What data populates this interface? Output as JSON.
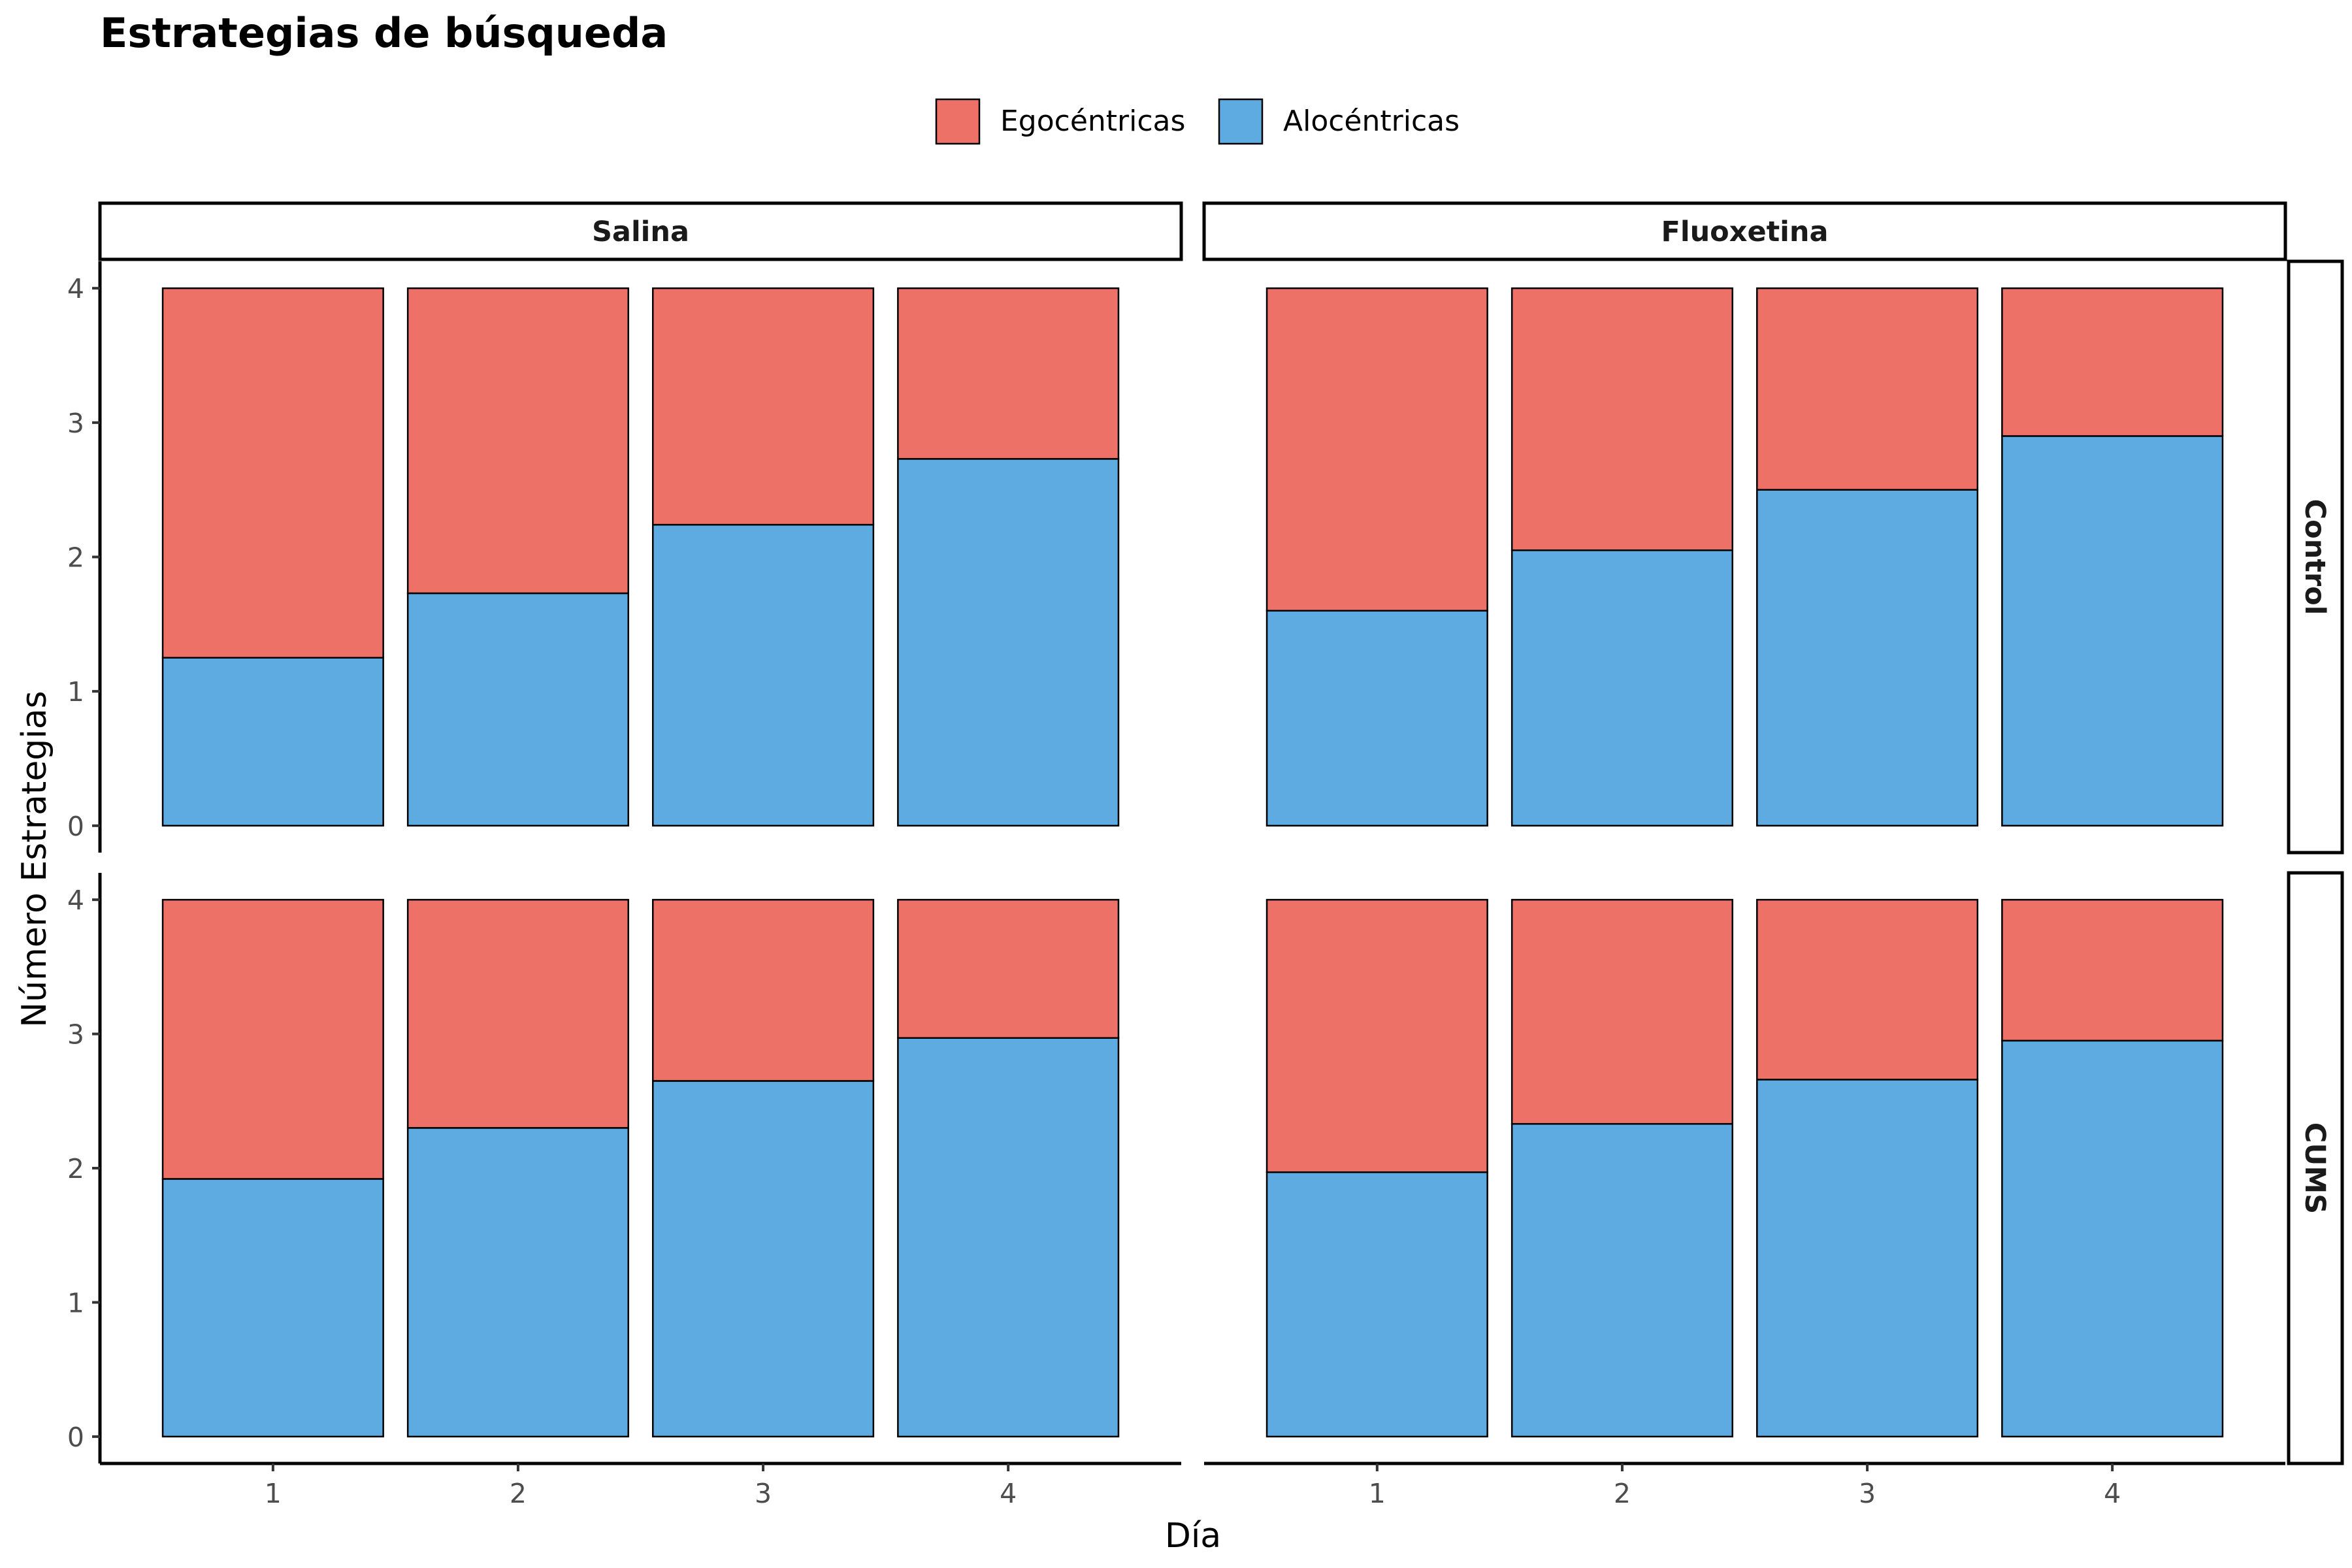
{
  "chart_data": {
    "type": "bar",
    "stacked": true,
    "title": "Estrategias de búsqueda",
    "xlabel": "Día",
    "ylabel": "Número Estrategias",
    "categories": [
      "1",
      "2",
      "3",
      "4"
    ],
    "ylim": [
      0,
      4
    ],
    "yticks": [
      "0",
      "1",
      "2",
      "3",
      "4"
    ],
    "grid": false,
    "legend_position": "top",
    "legend": [
      {
        "name": "Egocéntricas",
        "color": "#ED7167"
      },
      {
        "name": "Alocéntricas",
        "color": "#5DABE1"
      }
    ],
    "columns": [
      "Salina",
      "Fluoxetina"
    ],
    "rows": [
      "Control",
      "CUMS"
    ],
    "panels": [
      {
        "row": "Control",
        "col": "Salina",
        "alocentricas": [
          1.25,
          1.73,
          2.24,
          2.73
        ],
        "egocentricas": [
          2.75,
          2.27,
          1.76,
          1.27
        ]
      },
      {
        "row": "Control",
        "col": "Fluoxetina",
        "alocentricas": [
          1.6,
          2.05,
          2.5,
          2.9
        ],
        "egocentricas": [
          2.4,
          1.95,
          1.5,
          1.1
        ]
      },
      {
        "row": "CUMS",
        "col": "Salina",
        "alocentricas": [
          1.92,
          2.3,
          2.65,
          2.97
        ],
        "egocentricas": [
          2.08,
          1.7,
          1.35,
          1.03
        ]
      },
      {
        "row": "CUMS",
        "col": "Fluoxetina",
        "alocentricas": [
          1.97,
          2.33,
          2.66,
          2.95
        ],
        "egocentricas": [
          2.03,
          1.67,
          1.34,
          1.05
        ]
      }
    ]
  }
}
